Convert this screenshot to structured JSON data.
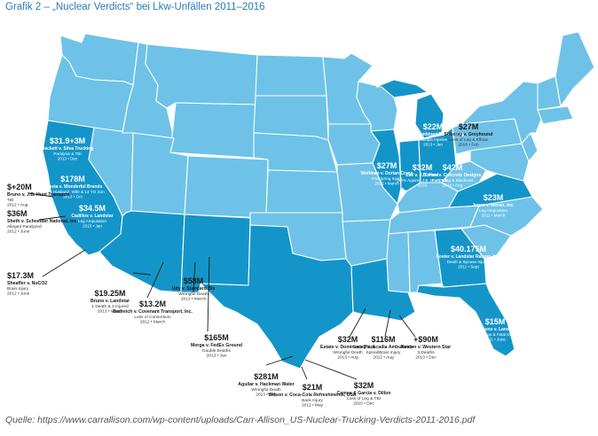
{
  "title": "Grafik 2 – „Nuclear Verdicts“ bei Lkw-Unfällen 2011–2016",
  "source": "Quelle: https://www.carrallison.com/wp-content/uploads/Carr-Allison_US-Nuclear-Trucking-Verdicts-2011-2016.pdf",
  "colors": {
    "state": "#6ec2e8",
    "highlight": "#1495c9",
    "border": "#ffffff",
    "title": "#2a7ab5"
  },
  "verdicts": [
    {
      "id": "ca1",
      "amount": "$31.9+3M",
      "case": "Hackett v. Silva Trucking",
      "detail": "Paralysis & TBI",
      "date": "2013 • Dec"
    },
    {
      "id": "ca2",
      "amount": "$178M",
      "case": "Acosta v. Wonderful Brands",
      "detail": "Death Husband, Wife & 14 YO Son",
      "date": "2013 • Oct"
    },
    {
      "id": "ca3",
      "amount": "$+20M",
      "case": "Bruno v. J.B. Hunt Transport",
      "detail": "TBI",
      "date": "2012 • Aug"
    },
    {
      "id": "ca4",
      "amount": "$36M",
      "case": "Sheth v. Schneider National, Inc.",
      "detail": "Alleged Paralyzed",
      "date": "2012 • June"
    },
    {
      "id": "ca5",
      "amount": "$34.5M",
      "case": "Cadillos v. Landstar",
      "detail": "Leg Amputation",
      "date": "2015 • Jan"
    },
    {
      "id": "ca6",
      "amount": "$17.3M",
      "case": "Sheaffer v. NuCO2",
      "detail": "Brain Injury",
      "date": "2012 • June"
    },
    {
      "id": "az1",
      "amount": "$19.25M",
      "case": "Bruno v. Landstar",
      "detail": "1 Death & 3 Injured",
      "date": "2013 • March"
    },
    {
      "id": "az2",
      "amount": "$13.2M",
      "case": "Badreich v. Covenant Transport, Inc.",
      "detail": "Loss of Consortium",
      "date": "2012 • March"
    },
    {
      "id": "nm1",
      "amount": "$58M",
      "case": "Udy v. Standard Bls",
      "detail": "Wrongful Death",
      "date": "2013 • March"
    },
    {
      "id": "nm2",
      "amount": "$165M",
      "case": "Morga v. FedEx Ground",
      "detail": "Double Deaths",
      "date": "2013 • Jan"
    },
    {
      "id": "tx1",
      "amount": "$281M",
      "case": "Aguilar v. Hackman Water",
      "detail": "Wrongful Death",
      "date": "2013 • Dec"
    },
    {
      "id": "tx2",
      "amount": "$21M",
      "case": "Wilson v. Coca-Cola Refreshments, USA",
      "detail": "Back Injury",
      "date": "2012 • May"
    },
    {
      "id": "tx3",
      "amount": "$32M",
      "case": "Cames & Garcia v. Dillon",
      "detail": "Loss of Leg & TBI",
      "date": "2015 • Dec"
    },
    {
      "id": "la1",
      "amount": "$32M",
      "case": "Estate v. Dominoes Pizza",
      "detail": "Wrongful Death",
      "date": "2013 • Aug"
    },
    {
      "id": "la2",
      "amount": "$116M",
      "case": "Lacey v. Acadia Ambulance",
      "detail": "Spinal/Brain Injury",
      "date": "2012 • Aug"
    },
    {
      "id": "la3",
      "amount": "+$90M",
      "case": "Keaton v. Western Star",
      "detail": "3 Deaths",
      "date": "2013 • Dec"
    },
    {
      "id": "il1",
      "amount": "$27M",
      "case": "Wolfman v. Dorian Crane",
      "detail": "Paralyzing Injury",
      "date": "2015 • March"
    },
    {
      "id": "mi1",
      "amount": "$22M",
      "case": "Holt v. Combined Ports Group",
      "detail": "Multiple Injuries",
      "date": "2013 • Jan"
    },
    {
      "id": "in1",
      "amount": "$32M",
      "case": "Zak v. J.B. Hunt",
      "detail": "(60% Against J.B. Hunt) TBI",
      "date": "2015"
    },
    {
      "id": "oh1",
      "amount": "$42M",
      "case": "Torres v. Concrete Designs",
      "detail": "Paralyzing & Blindness",
      "date": "2014 • Aug"
    },
    {
      "id": "pa1",
      "amount": "$27M",
      "case": "Soberay v. Greyhound",
      "detail": "Loss of Leg & Elbow",
      "date": "2016 • Feb"
    },
    {
      "id": "va1",
      "amount": "$23M",
      "case": "Jones v. Moran, Inc.",
      "detail": "Leg Amputation",
      "date": "2011 • March"
    },
    {
      "id": "ga1",
      "amount": "$40.175M",
      "case": "Foster v. Landstar Ranger, Inc.",
      "detail": "Death & Spouse Injured",
      "date": "2011 • Sept"
    },
    {
      "id": "fl1",
      "amount": "$15M",
      "case": "Simmons v. Landstar",
      "detail": "Lost Wage & Fatal Death",
      "date": "2011 • June"
    }
  ]
}
